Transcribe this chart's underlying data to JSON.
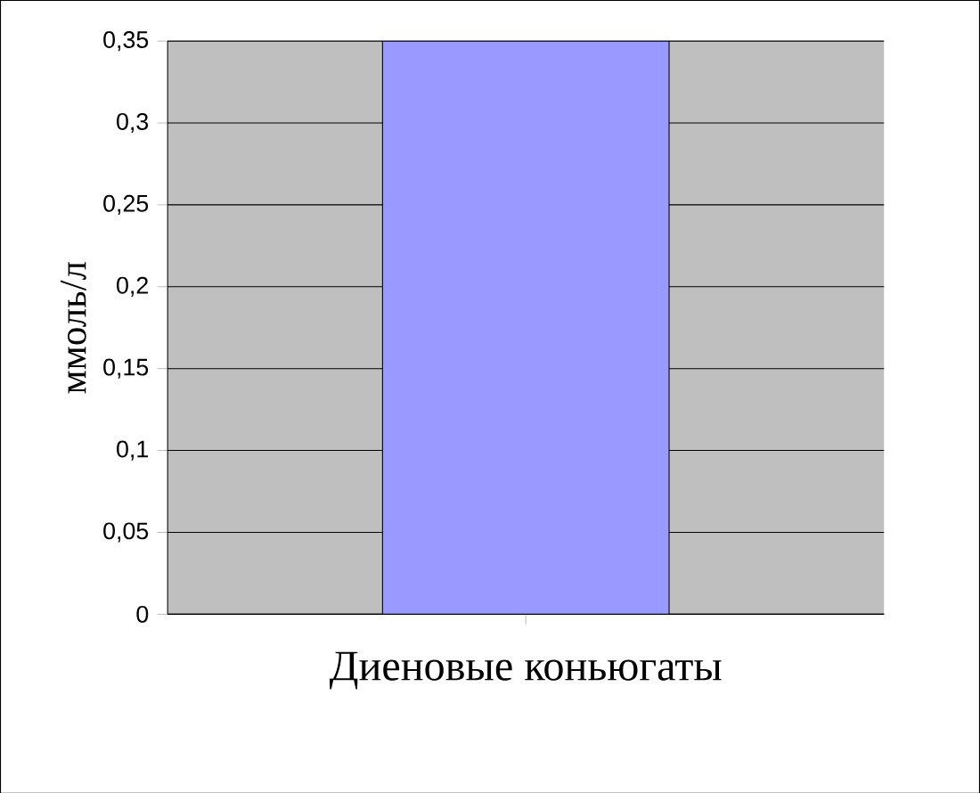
{
  "chart_data": {
    "type": "bar",
    "ylabel": "ммоль/л",
    "categories": [
      "Диеновые коньюгаты"
    ],
    "values": [
      0.35
    ],
    "color": "#9999ff",
    "ylim": [
      0,
      0.35
    ],
    "yticks": [
      0,
      {
        "value": 0.05,
        "label": "0,05"
      },
      {
        "value": 0.1,
        "label": "0,1"
      },
      {
        "value": 0.15,
        "label": "0,15"
      },
      {
        "value": 0.2,
        "label": "0,2"
      },
      {
        "value": 0.25,
        "label": "0,25"
      },
      {
        "value": 0.3,
        "label": "0,3"
      },
      {
        "value": 0.35,
        "label": "0,35"
      }
    ],
    "grid": "y"
  }
}
